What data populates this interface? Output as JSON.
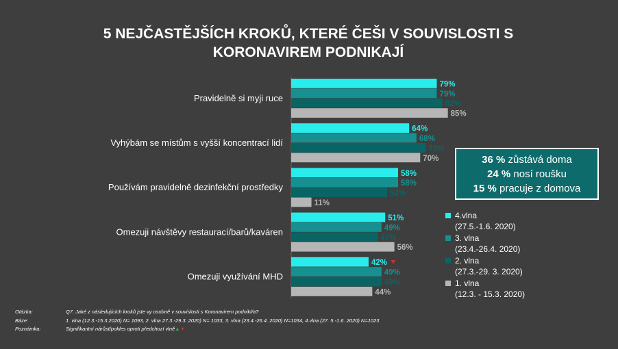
{
  "title_line1": "5 NEJČASTĚJŠÍCH KROKŮ, KTERÉ ČEŠI V SOUVISLOSTI S",
  "title_line2": "KORONAVIREM PODNIKAJÍ",
  "colors": {
    "w4": "#29eded",
    "w3": "#169090",
    "w2": "#0b6464",
    "w1": "#b6b6b6",
    "bg": "#3e3e3e"
  },
  "chart_data": {
    "type": "bar",
    "orientation": "horizontal",
    "categories": [
      "Pravidelně si myji ruce",
      "Vyhýbám se místům s vyšší koncentrací lidí",
      "Používám pravidelně dezinfekční prostředky",
      "Omezuji návštěvy restaurací/barů/kaváren",
      "Omezuji využívání MHD"
    ],
    "series": [
      {
        "name": "4.vlna",
        "values": [
          79,
          64,
          58,
          51,
          42
        ]
      },
      {
        "name": "3. vlna",
        "values": [
          79,
          68,
          58,
          49,
          49
        ]
      },
      {
        "name": "2. vlna",
        "values": [
          82,
          73,
          52,
          47,
          49
        ]
      },
      {
        "name": "1. vlna",
        "values": [
          85,
          70,
          11,
          56,
          44
        ]
      }
    ],
    "value_suffix": "%",
    "significant_decrease": [
      {
        "series": "4.vlna",
        "category": "Omezuji využívání MHD"
      }
    ]
  },
  "callout": [
    {
      "value": "36 %",
      "text": " zůstává doma"
    },
    {
      "value": "24 %",
      "text": " nosí roušku"
    },
    {
      "value": "15 %",
      "text": " pracuje z domova"
    }
  ],
  "legend": [
    {
      "name": "4.vlna",
      "date": "(27.5.-1.6. 2020)",
      "color": "#29eded"
    },
    {
      "name": "3. vlna",
      "date": "(23.4.-26.4. 2020)",
      "color": "#169090"
    },
    {
      "name": "2. vlna",
      "date": "(27.3.-29. 3. 2020)",
      "color": "#0b6464"
    },
    {
      "name": "1. vlna",
      "date": "(12.3. - 15.3. 2020)",
      "color": "#b6b6b6"
    }
  ],
  "footer": {
    "question_key": "Otázka:",
    "question": "Q7. Jaké z následujících kroků jste vy osobně v souvislosti s Koronavirem podnikl/a?",
    "base_key": "Báze:",
    "base": "1. vlna (12.3.-15.3.2020) N= 1093, 2. vlna 27.3.-29.3. 2020) N= 1033, 3. vlna (23.4.-26.4. 2020) N=1034, 4.vlna (27. 5.-1.6. 2020) N=1023",
    "note_key": "Poznámka:",
    "note": "Signifikantní nárůst/pokles oproti předchozí vlně"
  }
}
